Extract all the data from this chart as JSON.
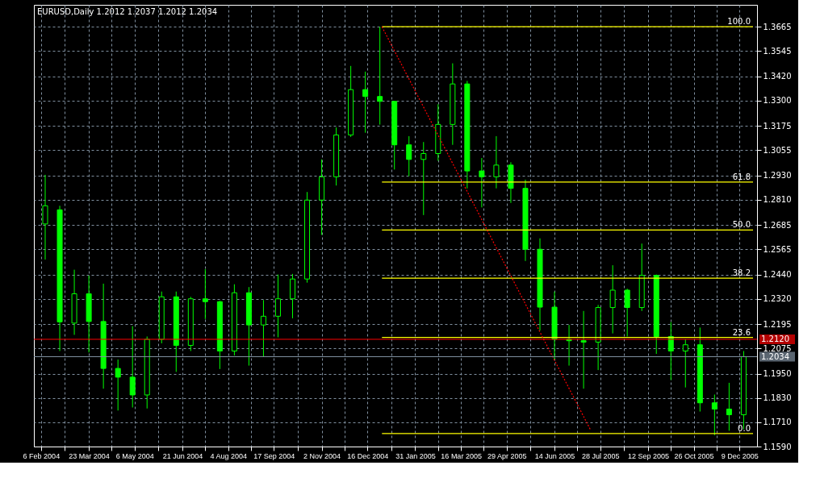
{
  "chart_data": {
    "type": "candlestick",
    "title": "EURUSD,Daily  1.2012 1.2037 1.2012 1.2034",
    "color": "#00ff00",
    "x": [
      "2004-02-10",
      "2004-02-24",
      "2004-03-09",
      "2004-03-23",
      "2004-04-06",
      "2004-04-20",
      "2004-05-04",
      "2004-05-18",
      "2004-06-01",
      "2004-06-15",
      "2004-06-29",
      "2004-07-13",
      "2004-07-27",
      "2004-08-10",
      "2004-08-24",
      "2004-09-07",
      "2004-09-21",
      "2004-10-05",
      "2004-10-19",
      "2004-11-02",
      "2004-11-16",
      "2004-11-30",
      "2004-12-14",
      "2004-12-28",
      "2005-01-11",
      "2005-01-25",
      "2005-02-08",
      "2005-02-22",
      "2005-03-08",
      "2005-03-22",
      "2005-04-05",
      "2005-04-19",
      "2005-05-03",
      "2005-05-17",
      "2005-05-31",
      "2005-06-14",
      "2005-06-28",
      "2005-07-12",
      "2005-07-26",
      "2005-08-09",
      "2005-08-23",
      "2005-09-06",
      "2005-09-20",
      "2005-10-04",
      "2005-10-18",
      "2005-11-01",
      "2005-11-15",
      "2005-11-29",
      "2005-12-13"
    ],
    "ohlc": [
      [
        1.269,
        1.2933,
        1.2514,
        1.278
      ],
      [
        1.276,
        1.278,
        1.2062,
        1.2206
      ],
      [
        1.22,
        1.2464,
        1.2142,
        1.2345
      ],
      [
        1.2345,
        1.2435,
        1.2055,
        1.2208
      ],
      [
        1.2208,
        1.2395,
        1.1876,
        1.1976
      ],
      [
        1.1976,
        1.202,
        1.1768,
        1.1933
      ],
      [
        1.1933,
        1.2185,
        1.1783,
        1.1845
      ],
      [
        1.1845,
        1.2134,
        1.1778,
        1.212
      ],
      [
        1.212,
        1.2356,
        1.21,
        1.233
      ],
      [
        1.233,
        1.2356,
        1.1959,
        1.209
      ],
      [
        1.209,
        1.233,
        1.2062,
        1.232
      ],
      [
        1.232,
        1.2467,
        1.222,
        1.2306
      ],
      [
        1.2306,
        1.231,
        1.1973,
        1.2062
      ],
      [
        1.2062,
        1.2392,
        1.204,
        1.235
      ],
      [
        1.235,
        1.2378,
        1.199,
        1.2191
      ],
      [
        1.2191,
        1.2314,
        1.2033,
        1.2234
      ],
      [
        1.2234,
        1.244,
        1.213,
        1.232
      ],
      [
        1.232,
        1.2443,
        1.2224,
        1.2418
      ],
      [
        1.2418,
        1.2848,
        1.24,
        1.2808
      ],
      [
        1.2808,
        1.3009,
        1.2636,
        1.2923
      ],
      [
        1.2923,
        1.3167,
        1.288,
        1.313
      ],
      [
        1.313,
        1.3471,
        1.312,
        1.3354
      ],
      [
        1.3354,
        1.3443,
        1.3141,
        1.332
      ],
      [
        1.332,
        1.3665,
        1.3181,
        1.3296
      ],
      [
        1.3296,
        1.3296,
        1.2959,
        1.3081
      ],
      [
        1.3081,
        1.3124,
        1.2926,
        1.3009
      ],
      [
        1.3009,
        1.3095,
        1.2734,
        1.3038
      ],
      [
        1.3038,
        1.3282,
        1.3002,
        1.3182
      ],
      [
        1.3182,
        1.3484,
        1.3081,
        1.3382
      ],
      [
        1.3382,
        1.3397,
        1.2866,
        1.2952
      ],
      [
        1.2952,
        1.3016,
        1.2772,
        1.2923
      ],
      [
        1.2923,
        1.3124,
        1.2866,
        1.2981
      ],
      [
        1.2981,
        1.2995,
        1.2794,
        1.2866
      ],
      [
        1.2866,
        1.2909,
        1.2507,
        1.2565
      ],
      [
        1.2565,
        1.2619,
        1.2163,
        1.2279
      ],
      [
        1.2279,
        1.2356,
        1.2019,
        1.212
      ],
      [
        1.212,
        1.2191,
        1.199,
        1.2113
      ],
      [
        1.2113,
        1.226,
        1.1876,
        1.2106
      ],
      [
        1.2106,
        1.229,
        1.1968,
        1.2277
      ],
      [
        1.2277,
        1.2486,
        1.2149,
        1.2363
      ],
      [
        1.2363,
        1.237,
        1.2134,
        1.2277
      ],
      [
        1.2277,
        1.2593,
        1.226,
        1.2436
      ],
      [
        1.2436,
        1.244,
        1.2048,
        1.2134
      ],
      [
        1.2134,
        1.2205,
        1.1919,
        1.2062
      ],
      [
        1.2062,
        1.212,
        1.1882,
        1.2093
      ],
      [
        1.2093,
        1.2178,
        1.1763,
        1.1806
      ],
      [
        1.1806,
        1.1847,
        1.1646,
        1.1775
      ],
      [
        1.1775,
        1.1905,
        1.1668,
        1.1747
      ],
      [
        1.1747,
        1.2062,
        1.1675,
        1.2034
      ]
    ],
    "series": [
      {
        "name": "100.0",
        "type": "line",
        "color": "#ffff00",
        "x": [
          "2004-12-30",
          "2005-12-22"
        ],
        "values": [
          1.3665,
          1.3665
        ]
      },
      {
        "name": "61.8",
        "type": "line",
        "color": "#ffff00",
        "x": [
          "2004-12-30",
          "2005-12-22"
        ],
        "values": [
          1.2897,
          1.2897
        ]
      },
      {
        "name": "50.0",
        "type": "line",
        "color": "#ffff00",
        "x": [
          "2004-12-30",
          "2005-12-22"
        ],
        "values": [
          1.266,
          1.266
        ]
      },
      {
        "name": "38.2",
        "type": "line",
        "color": "#ffff00",
        "x": [
          "2004-12-30",
          "2005-12-22"
        ],
        "values": [
          1.2422,
          1.2422
        ]
      },
      {
        "name": "23.6",
        "type": "line",
        "color": "#ffff00",
        "x": [
          "2004-12-30",
          "2005-12-22"
        ],
        "values": [
          1.2129,
          1.2129
        ]
      },
      {
        "name": "0.0",
        "type": "line",
        "color": "#ffff00",
        "x": [
          "2004-12-30",
          "2005-12-22"
        ],
        "values": [
          1.1654,
          1.1654
        ]
      },
      {
        "type": "line",
        "color": "#ff0000",
        "line_style": "dotted",
        "x": [
          "2004-12-30",
          "2005-07-19"
        ],
        "values": [
          1.3665,
          1.1669
        ]
      }
    ],
    "ref_lines": [
      {
        "axis": "y",
        "value": 1.212,
        "label": "1.2120",
        "color": "#ff0000"
      },
      {
        "axis": "y",
        "value": 1.2034,
        "label": "1.2034",
        "color": "#8090a0"
      }
    ],
    "xlim": [
      "2004-02-03",
      "2005-12-22"
    ],
    "xticks": [
      {
        "value": "2004-02-06",
        "label": "6 Feb 2004"
      },
      {
        "value": "2004-02-29",
        "label": null
      },
      {
        "value": "2004-03-23",
        "label": "23 Mar 2004"
      },
      {
        "value": "2004-04-14",
        "label": null
      },
      {
        "value": "2004-05-06",
        "label": "6 May 2004"
      },
      {
        "value": "2004-05-29",
        "label": null
      },
      {
        "value": "2004-06-21",
        "label": "21 Jun 2004"
      },
      {
        "value": "2004-07-13",
        "label": null
      },
      {
        "value": "2004-08-04",
        "label": "4 Aug 2004"
      },
      {
        "value": "2004-08-26",
        "label": null
      },
      {
        "value": "2004-09-17",
        "label": "17 Sep 2004"
      },
      {
        "value": "2004-10-10",
        "label": null
      },
      {
        "value": "2004-11-02",
        "label": "2 Nov 2004"
      },
      {
        "value": "2004-11-24",
        "label": null
      },
      {
        "value": "2004-12-16",
        "label": "16 Dec 2004"
      },
      {
        "value": "2005-01-08",
        "label": null
      },
      {
        "value": "2005-01-31",
        "label": "31 Jan 2005"
      },
      {
        "value": "2005-02-22",
        "label": null
      },
      {
        "value": "2005-03-16",
        "label": "16 Mar 2005"
      },
      {
        "value": "2005-04-07",
        "label": null
      },
      {
        "value": "2005-04-29",
        "label": "29 Apr 2005"
      },
      {
        "value": "2005-05-22",
        "label": null
      },
      {
        "value": "2005-06-14",
        "label": "14 Jun 2005"
      },
      {
        "value": "2005-07-06",
        "label": null
      },
      {
        "value": "2005-07-28",
        "label": "28 Jul 2005"
      },
      {
        "value": "2005-08-20",
        "label": null
      },
      {
        "value": "2005-09-12",
        "label": "12 Sep 2005"
      },
      {
        "value": "2005-10-04",
        "label": null
      },
      {
        "value": "2005-10-26",
        "label": "26 Oct 2005"
      },
      {
        "value": "2005-11-17",
        "label": null
      },
      {
        "value": "2005-12-09",
        "label": "9 Dec 2005"
      }
    ],
    "ylim": [
      1.159,
      1.3773
    ],
    "yticks": [
      {
        "value": 1.159,
        "label": "1.1590"
      },
      {
        "value": 1.171,
        "label": "1.1710"
      },
      {
        "value": 1.183,
        "label": "1.1830"
      },
      {
        "value": 1.195,
        "label": "1.1950"
      },
      1.2075,
      1.2195,
      {
        "value": 1.232,
        "label": "1.2320"
      },
      {
        "value": 1.244,
        "label": "1.2440"
      },
      1.2565,
      1.2685,
      {
        "value": 1.281,
        "label": "1.2810"
      },
      {
        "value": 1.293,
        "label": "1.2930"
      },
      1.3055,
      1.3175,
      {
        "value": 1.33,
        "label": "1.3300"
      },
      {
        "value": 1.342,
        "label": "1.3420"
      },
      1.3545,
      1.3665
    ],
    "grid": true
  }
}
